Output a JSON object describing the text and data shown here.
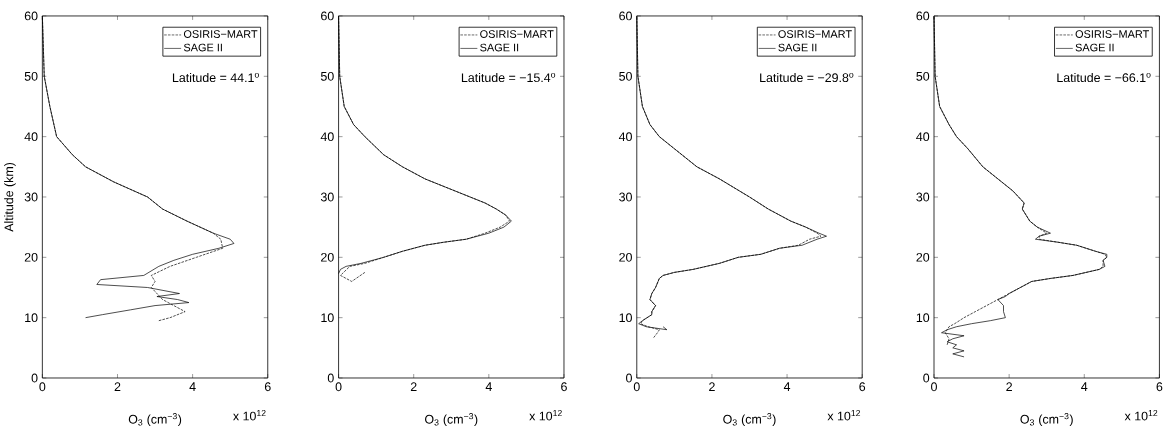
{
  "chart_data": [
    {
      "type": "line",
      "xlabel": "O$_{3}$ (cm$^{−3}$)",
      "ylabel": "Altitude (km)",
      "xlim": [
        0,
        6
      ],
      "ylim": [
        0,
        60
      ],
      "xticks": [
        0,
        2,
        4,
        6
      ],
      "yticks": [
        0,
        10,
        20,
        30,
        40,
        50,
        60
      ],
      "legend": "top right",
      "annotations": [
        "Latitude = 44.1$^{o}$",
        "x 10$^{12}$"
      ],
      "series": [
        {
          "name": "OSIRIS−MART",
          "color": "#000000",
          "line_style": "dashed",
          "x": [
            0,
            0.05,
            0.2,
            0.38,
            0.8,
            1.15,
            1.9,
            2.8,
            3.2,
            3.85,
            4.55,
            4.75,
            4.8,
            4.1,
            3.4,
            2.9,
            3.0,
            2.9,
            3.2,
            3.5,
            3.8,
            3.4,
            3.1
          ],
          "values": [
            60,
            50,
            45,
            40,
            37,
            35,
            32.5,
            30,
            28,
            26,
            24,
            23,
            21.5,
            20,
            18.5,
            17,
            16,
            15,
            13,
            12,
            11,
            10,
            9.5
          ]
        },
        {
          "name": "SAGE II",
          "color": "#000000",
          "line_style": "solid",
          "x": [
            0,
            0.05,
            0.2,
            0.38,
            0.8,
            1.15,
            1.9,
            2.8,
            3.2,
            3.85,
            4.55,
            5.0,
            5.1,
            4.7,
            4.0,
            3.5,
            3.1,
            2.7,
            1.55,
            1.45,
            2.8,
            3.65,
            3.05,
            3.6,
            3.9,
            3.0,
            2.35,
            1.6,
            1.15
          ],
          "values": [
            60,
            50,
            45,
            40,
            37,
            35,
            32.5,
            30,
            28,
            26,
            24,
            23,
            22.3,
            21.5,
            20.5,
            19.5,
            18.5,
            17,
            16.3,
            15.5,
            15,
            14,
            13.5,
            13,
            12.5,
            12,
            11.3,
            10.5,
            10
          ]
        }
      ]
    },
    {
      "type": "line",
      "xlabel": "O$_{3}$ (cm$^{−3}$)",
      "xlim": [
        0,
        6
      ],
      "ylim": [
        0,
        60
      ],
      "xticks": [
        0,
        2,
        4,
        6
      ],
      "yticks": [
        0,
        10,
        20,
        30,
        40,
        50,
        60
      ],
      "legend": "top right",
      "annotations": [
        "Latitude = −15.4$^{o}$",
        "x 10$^{12}$"
      ],
      "series": [
        {
          "name": "OSIRIS−MART",
          "color": "#000000",
          "line_style": "dashed",
          "x": [
            0,
            0.03,
            0.15,
            0.4,
            0.7,
            1.2,
            1.7,
            2.3,
            3.1,
            3.9,
            4.2,
            4.45,
            4.55,
            4.3,
            3.9,
            3.4,
            2.8,
            2.3,
            1.7,
            1.2,
            0.7,
            0.3,
            0.05,
            0.35,
            0.7
          ],
          "values": [
            60,
            50,
            45,
            42,
            40,
            37,
            35,
            33,
            31,
            29,
            28,
            27,
            26,
            25,
            24,
            23,
            22.5,
            22,
            21,
            20,
            19,
            18.5,
            17,
            16,
            17.5
          ]
        },
        {
          "name": "SAGE II",
          "color": "#000000",
          "line_style": "solid",
          "x": [
            0,
            0.03,
            0.15,
            0.4,
            0.7,
            1.2,
            1.7,
            2.3,
            3.1,
            3.9,
            4.2,
            4.45,
            4.6,
            4.4,
            4.0,
            3.4,
            2.8,
            2.3,
            1.7,
            1.2,
            0.6,
            0.2,
            0.05,
            0.0
          ],
          "values": [
            60,
            50,
            45,
            42,
            40,
            37,
            35,
            33,
            31,
            29,
            28,
            27,
            26,
            25,
            24,
            23,
            22.5,
            22,
            21,
            20,
            19,
            18.5,
            18,
            17.3
          ]
        }
      ]
    },
    {
      "type": "line",
      "xlabel": "O$_{3}$ (cm$^{−3}$)",
      "xlim": [
        0,
        6
      ],
      "ylim": [
        0,
        60
      ],
      "xticks": [
        0,
        2,
        4,
        6
      ],
      "yticks": [
        0,
        10,
        20,
        30,
        40,
        50,
        60
      ],
      "legend": "top right",
      "annotations": [
        "Latitude = −29.8$^{o}$",
        "x 10$^{12}$"
      ],
      "series": [
        {
          "name": "OSIRIS−MART",
          "color": "#000000",
          "line_style": "dashed",
          "x": [
            0,
            0.03,
            0.15,
            0.35,
            0.6,
            1.0,
            1.6,
            2.2,
            3.0,
            3.5,
            4.1,
            4.5,
            4.8,
            4.9,
            4.6,
            4.3,
            3.8,
            3.3,
            2.7,
            2.2,
            1.5,
            1.0,
            0.7,
            0.6,
            0.5,
            0.4,
            0.35,
            0.5,
            0.4,
            0.4,
            0.15,
            0.1,
            0.3,
            0.6,
            0.55,
            0.45
          ],
          "values": [
            60,
            50,
            45,
            42,
            40,
            38,
            35,
            33,
            30,
            28,
            26,
            25,
            24,
            23.5,
            23,
            22,
            21.5,
            20.5,
            20,
            19,
            18,
            17.5,
            17,
            16.5,
            15,
            14,
            13,
            12,
            11,
            10.5,
            9.5,
            9,
            8.5,
            8,
            7.5,
            6.7
          ]
        },
        {
          "name": "SAGE II",
          "color": "#000000",
          "line_style": "solid",
          "x": [
            0,
            0.03,
            0.15,
            0.35,
            0.6,
            1.0,
            1.6,
            2.2,
            3.0,
            3.5,
            4.1,
            4.5,
            4.85,
            5.05,
            4.8,
            4.4,
            3.8,
            3.3,
            2.7,
            2.2,
            1.5,
            1.0,
            0.7,
            0.6,
            0.5,
            0.4,
            0.35,
            0.5,
            0.4,
            0.4,
            0.15,
            0.05,
            0.25,
            0.8,
            0.7
          ],
          "values": [
            60,
            50,
            45,
            42,
            40,
            38,
            35,
            33,
            30,
            28,
            26,
            25,
            24,
            23.5,
            23,
            22,
            21.5,
            20.5,
            20,
            19,
            18,
            17.5,
            17,
            16.5,
            15,
            14,
            13,
            12,
            11,
            10.5,
            9.5,
            9,
            8.5,
            8,
            8.5
          ]
        }
      ]
    },
    {
      "type": "line",
      "xlabel": "O$_{3}$ (cm$^{−3}$)",
      "xlim": [
        0,
        6
      ],
      "ylim": [
        0,
        60
      ],
      "xticks": [
        0,
        2,
        4,
        6
      ],
      "yticks": [
        0,
        10,
        20,
        30,
        40,
        50,
        60
      ],
      "legend": "top right",
      "annotations": [
        "Latitude = −66.1$^{o}$",
        "x 10$^{12}$"
      ],
      "series": [
        {
          "name": "OSIRIS−MART",
          "color": "#000000",
          "line_style": "dashed",
          "x": [
            0,
            0.03,
            0.15,
            0.4,
            0.6,
            0.9,
            1.3,
            1.7,
            2.1,
            2.4,
            2.35,
            2.55,
            2.75,
            3.0,
            2.8,
            2.8,
            3.3,
            3.8,
            4.3,
            4.55,
            4.6,
            4.5,
            4.5,
            4.4,
            3.7,
            3.1,
            2.6,
            2.3,
            2.0,
            1.7,
            1.4,
            1.1,
            0.8,
            0.55,
            0.4,
            0.3,
            0.4,
            0.35
          ],
          "values": [
            60,
            50,
            45,
            42,
            40,
            38,
            35,
            33,
            31,
            29,
            28,
            26,
            25,
            24,
            23.5,
            23,
            22.5,
            22,
            21,
            20.5,
            20,
            19.5,
            18.5,
            18,
            17,
            16.5,
            16,
            15,
            14,
            13,
            12,
            11,
            10,
            9,
            8.5,
            7.5,
            6.5,
            5.5
          ]
        },
        {
          "name": "SAGE II",
          "color": "#000000",
          "line_style": "solid",
          "x": [
            0,
            0.03,
            0.15,
            0.4,
            0.6,
            0.9,
            1.3,
            1.7,
            2.1,
            2.4,
            2.35,
            2.55,
            2.75,
            3.1,
            2.8,
            2.7,
            3.3,
            3.8,
            4.3,
            4.6,
            4.6,
            4.5,
            4.55,
            4.4,
            3.7,
            3.1,
            2.6,
            2.3,
            2.0,
            1.9,
            1.7,
            1.85,
            1.85,
            1.9,
            1.5,
            1.0,
            0.6,
            0.35,
            0.2,
            0.8,
            0.5,
            0.35,
            0.6,
            0.5,
            0.8,
            0.5,
            0.8
          ],
          "values": [
            60,
            50,
            45,
            42,
            40,
            38,
            35,
            33,
            31,
            29,
            28,
            26,
            25,
            24,
            23.5,
            23,
            22.5,
            22,
            21,
            20.5,
            20,
            19.5,
            18.5,
            18,
            17,
            16.5,
            16,
            15,
            14,
            13.5,
            13,
            12,
            11,
            10,
            9.5,
            9,
            8.5,
            8,
            7.5,
            7,
            6.5,
            6,
            5.5,
            5,
            4.5,
            4,
            3.5
          ]
        }
      ]
    }
  ]
}
